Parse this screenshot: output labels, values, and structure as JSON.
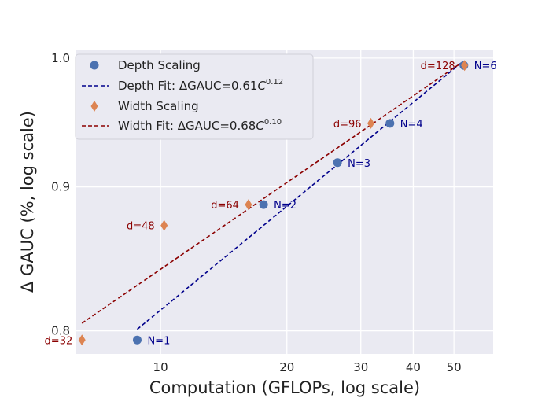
{
  "chart_data": {
    "type": "scatter",
    "title": "",
    "xlabel": "Computation (GFLOPs, log scale)",
    "ylabel": "Δ GAUC (%, log scale)",
    "xscale": "log",
    "yscale": "log",
    "xlim": [
      6.3,
      62
    ],
    "ylim": [
      0.785,
      1.007
    ],
    "x_ticks": [
      10,
      20,
      30,
      40,
      50
    ],
    "y_ticks": [
      0.8,
      0.9,
      1.0
    ],
    "x_tick_labels": [
      "10",
      "20",
      "30",
      "40",
      "50"
    ],
    "y_tick_labels": [
      "0.8",
      "0.9",
      "1.0"
    ],
    "grid": true,
    "legend_position": "top-left",
    "colors": {
      "background": "#eaeaf2",
      "grid": "#ffffff",
      "depth_marker": "#4c72b0",
      "depth_label": "#00008b",
      "depth_fit": "#00008b",
      "width_marker": "#dd8452",
      "width_label": "#8b0000",
      "width_fit": "#8b0000"
    },
    "series": [
      {
        "name": "Depth Scaling",
        "marker": "circle",
        "points": [
          {
            "x": 8.8,
            "y": 0.794,
            "label": "N=1"
          },
          {
            "x": 17.6,
            "y": 0.887,
            "label": "N=2"
          },
          {
            "x": 26.4,
            "y": 0.918,
            "label": "N=3"
          },
          {
            "x": 35.2,
            "y": 0.948,
            "label": "N=4"
          },
          {
            "x": 52.8,
            "y": 0.994,
            "label": "N=6"
          }
        ]
      },
      {
        "name": "Width Scaling",
        "marker": "diamond",
        "points": [
          {
            "x": 6.5,
            "y": 0.794,
            "label": "d=32"
          },
          {
            "x": 10.2,
            "y": 0.872,
            "label": "d=48"
          },
          {
            "x": 16.2,
            "y": 0.887,
            "label": "d=64"
          },
          {
            "x": 31.7,
            "y": 0.948,
            "label": "d=96"
          },
          {
            "x": 53.0,
            "y": 0.994,
            "label": "d=128"
          }
        ]
      }
    ],
    "fits": [
      {
        "name": "Depth Fit",
        "legend_prefix": "Depth Fit: ΔGAUC=0.61",
        "legend_var": "C",
        "legend_exp": "0.12",
        "style": "dashed",
        "x_range": [
          8.8,
          52.0
        ],
        "y_range": [
          0.801,
          0.996
        ]
      },
      {
        "name": "Width Fit",
        "legend_prefix": "Width Fit: ΔGAUC=0.68",
        "legend_var": "C",
        "legend_exp": "0.10",
        "style": "dashed",
        "x_range": [
          6.5,
          52.0
        ],
        "y_range": [
          0.805,
          0.996
        ]
      }
    ]
  }
}
